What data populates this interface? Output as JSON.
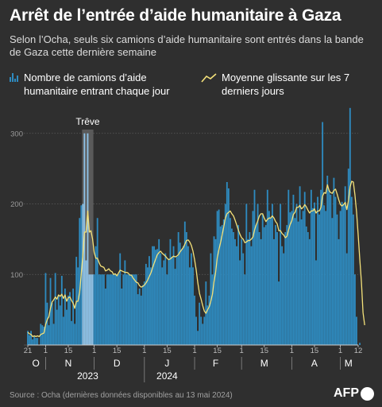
{
  "header": {
    "title": "Arrêt de l’entrée d’aide humanitaire à Gaza",
    "subtitle": "Selon l’Ocha, seuls six camions d’aide humanitaire sont entrés dans la bande de Gaza cette dernière semaine"
  },
  "legend": {
    "bars_label": "Nombre de camions d’aide humanitaire entrant chaque jour",
    "line_label": "Moyenne glissante sur les 7 derniers jours"
  },
  "footer": {
    "source": "Source : Ocha (dernières données disponibles au 13 mai 2024)",
    "logo_text": "AFP"
  },
  "colors": {
    "bar": "#2e8bc0",
    "bar_truce": "#8fc3e8",
    "line": "#f5e27a",
    "background": "#2f2f2f",
    "truce_band": "#6a6a6a"
  },
  "chart_data": {
    "type": "bar",
    "x_start": "2023-10-21",
    "x_end": "2024-05-12",
    "ylim": [
      0,
      320
    ],
    "yticks": [
      0,
      100,
      200,
      300
    ],
    "annotation": {
      "label": "Trêve",
      "start": "2023-11-24",
      "end": "2023-11-30"
    },
    "xtick_labels": [
      {
        "label": "21",
        "date": "2023-10-21"
      },
      {
        "label": "1",
        "date": "2023-11-01"
      },
      {
        "label": "15",
        "date": "2023-11-15"
      },
      {
        "label": "1",
        "date": "2023-12-01"
      },
      {
        "label": "15",
        "date": "2023-12-15"
      },
      {
        "label": "1",
        "date": "2024-01-01"
      },
      {
        "label": "15",
        "date": "2024-01-15"
      },
      {
        "label": "1",
        "date": "2024-02-01"
      },
      {
        "label": "15",
        "date": "2024-02-15"
      },
      {
        "label": "1",
        "date": "2024-03-01"
      },
      {
        "label": "15",
        "date": "2024-03-15"
      },
      {
        "label": "1",
        "date": "2024-04-01"
      },
      {
        "label": "15",
        "date": "2024-04-15"
      },
      {
        "label": "1",
        "date": "2024-05-01"
      },
      {
        "label": "12",
        "date": "2024-05-12"
      }
    ],
    "month_labels": [
      {
        "label": "O",
        "date": "2023-10-26"
      },
      {
        "label": "N",
        "date": "2023-11-15"
      },
      {
        "label": "D",
        "date": "2023-12-15"
      },
      {
        "label": "J",
        "date": "2024-01-15"
      },
      {
        "label": "F",
        "date": "2024-02-14"
      },
      {
        "label": "M",
        "date": "2024-03-15"
      },
      {
        "label": "A",
        "date": "2024-04-15"
      },
      {
        "label": "M",
        "date": "2024-05-06"
      }
    ],
    "year_labels": [
      {
        "label": "2023",
        "date": "2023-11-27"
      },
      {
        "label": "2024",
        "date": "2024-01-15"
      }
    ],
    "series": [
      {
        "name": "Nombre de camions d’aide humanitaire entrant chaque jour",
        "kind": "bar",
        "start": "2023-10-21",
        "values": [
          20,
          14,
          20,
          8,
          12,
          10,
          10,
          0,
          30,
          28,
          26,
          102,
          60,
          28,
          95,
          60,
          30,
          102,
          50,
          70,
          56,
          98,
          40,
          80,
          50,
          70,
          75,
          34,
          80,
          30,
          125,
          110,
          180,
          198,
          200,
          300,
          120,
          300,
          100,
          100,
          100,
          100,
          140,
          180,
          100,
          100,
          100,
          100,
          80,
          100,
          100,
          100,
          100,
          100,
          100,
          100,
          100,
          130,
          80,
          100,
          120,
          100,
          100,
          100,
          100,
          100,
          100,
          100,
          72,
          80,
          70,
          85,
          90,
          115,
          110,
          126,
          110,
          140,
          140,
          135,
          136,
          150,
          130,
          110,
          120,
          130,
          100,
          122,
          150,
          125,
          140,
          108,
          125,
          160,
          145,
          135,
          140,
          175,
          160,
          140,
          110,
          130,
          110,
          70,
          40,
          20,
          60,
          40,
          30,
          40,
          90,
          56,
          70,
          130,
          100,
          154,
          150,
          190,
          192,
          168,
          170,
          178,
          200,
          231,
          222,
          180,
          165,
          160,
          150,
          140,
          170,
          120,
          150,
          130,
          100,
          200,
          150,
          160,
          140,
          190,
          220,
          170,
          200,
          160,
          150,
          185,
          167,
          170,
          220,
          190,
          180,
          200,
          150,
          170,
          160,
          90,
          200,
          140,
          130,
          160,
          170,
          220,
          188,
          190,
          213,
          180,
          200,
          175,
          225,
          178,
          190,
          217,
          168,
          160,
          150,
          220,
          194,
          202,
          120,
          210,
          185,
          220,
          316,
          198,
          190,
          240,
          220,
          213,
          180,
          237,
          210,
          185,
          150,
          190,
          203,
          200,
          225,
          130,
          250,
          336,
          210,
          185,
          100,
          40,
          0,
          3,
          0,
          0
        ]
      },
      {
        "name": "Moyenne glissante sur les 7 derniers jours",
        "kind": "line",
        "start": "2023-10-21",
        "values": [
          18,
          16,
          15,
          12,
          13,
          12,
          13,
          12,
          15,
          16,
          17,
          29,
          36,
          40,
          52,
          61,
          64,
          68,
          65,
          71,
          69,
          72,
          66,
          71,
          62,
          67,
          68,
          63,
          59,
          52,
          62,
          62,
          75,
          101,
          127,
          160,
          160,
          190,
          160,
          162,
          150,
          131,
          123,
          123,
          117,
          112,
          111,
          110,
          105,
          106,
          108,
          105,
          104,
          100,
          101,
          98,
          102,
          106,
          105,
          104,
          103,
          103,
          102,
          99,
          99,
          95,
          92,
          89,
          88,
          84,
          82,
          83,
          85,
          88,
          92,
          97,
          102,
          109,
          116,
          122,
          128,
          131,
          133,
          130,
          128,
          126,
          123,
          121,
          122,
          124,
          126,
          125,
          126,
          128,
          132,
          135,
          138,
          143,
          148,
          149,
          146,
          141,
          133,
          121,
          106,
          88,
          73,
          65,
          56,
          48,
          45,
          50,
          54,
          62,
          72,
          90,
          103,
          124,
          135,
          145,
          156,
          167,
          180,
          186,
          188,
          190,
          186,
          183,
          177,
          170,
          163,
          157,
          152,
          150,
          145,
          146,
          148,
          148,
          150,
          153,
          163,
          170,
          176,
          183,
          186,
          186,
          180,
          175,
          178,
          180,
          180,
          183,
          180,
          175,
          172,
          162,
          162,
          158,
          156,
          152,
          154,
          163,
          171,
          176,
          185,
          188,
          195,
          195,
          198,
          193,
          195,
          199,
          196,
          191,
          187,
          190,
          190,
          193,
          187,
          190,
          190,
          195,
          211,
          216,
          215,
          227,
          219,
          216,
          215,
          219,
          221,
          214,
          206,
          199,
          197,
          199,
          202,
          192,
          205,
          224,
          232,
          231,
          213,
          188,
          156,
          122,
          89,
          46,
          28
        ]
      }
    ]
  }
}
